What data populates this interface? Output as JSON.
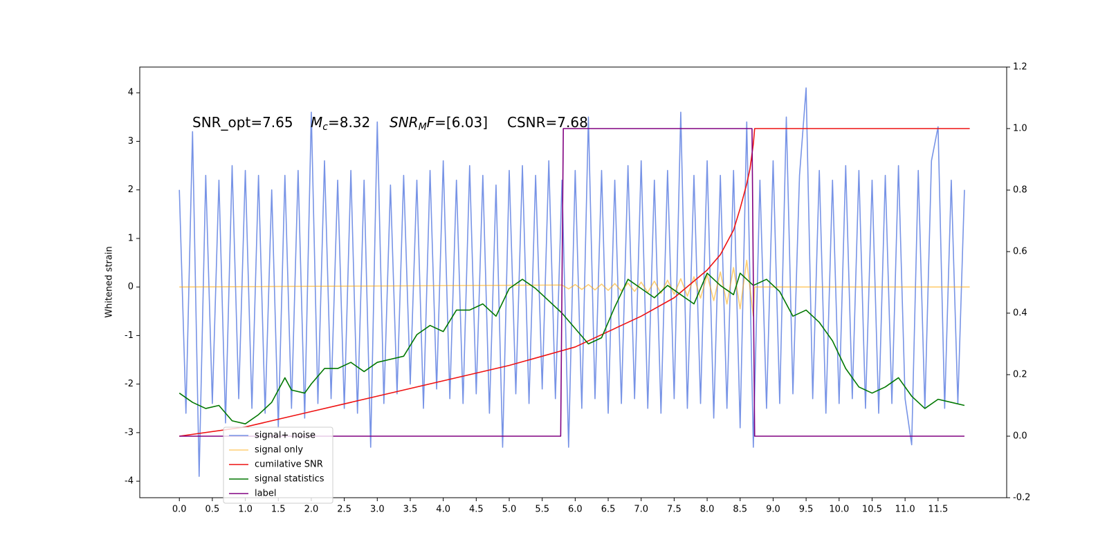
{
  "chart_data": {
    "type": "line",
    "ylabel": "Whitened strain",
    "annotation": [
      [
        {
          "text": "SNR_opt=7.65"
        }
      ],
      [
        {
          "text": "M",
          "style": "italic"
        },
        {
          "text": "c",
          "style": "sub"
        },
        {
          "text": "=8.32"
        }
      ],
      [
        {
          "text": "SNR",
          "style": "italic"
        },
        {
          "text": "M",
          "style": "sub"
        },
        {
          "text": "F",
          "style": "italic"
        },
        {
          "text": "=[6.03]"
        }
      ],
      [
        {
          "text": "CSNR=7.68"
        }
      ]
    ],
    "xlim": [
      -0.6,
      12.54
    ],
    "xticks": [
      {
        "value": 0,
        "label": "0.0"
      },
      0.5,
      {
        "value": 1,
        "label": "1.0"
      },
      1.5,
      {
        "value": 2,
        "label": "2.0"
      },
      2.5,
      {
        "value": 3,
        "label": "3.0"
      },
      3.5,
      {
        "value": 4,
        "label": "4.0"
      },
      4.5,
      {
        "value": 5,
        "label": "5.0"
      },
      5.5,
      {
        "value": 6,
        "label": "6.0"
      },
      6.5,
      {
        "value": 7,
        "label": "7.0"
      },
      7.5,
      {
        "value": 8,
        "label": "8.0"
      },
      8.5,
      {
        "value": 9,
        "label": "9.0"
      },
      9.5,
      {
        "value": 10,
        "label": "10.0"
      },
      10.5,
      {
        "value": 11,
        "label": "11.0"
      },
      11.5
    ],
    "ylim": [
      -4.34,
      4.53
    ],
    "yticks": [
      -4,
      -3,
      -2,
      -1,
      0,
      1,
      2,
      3,
      4
    ],
    "y2lim": [
      -0.2,
      1.2
    ],
    "y2ticks": [
      -0.2,
      {
        "value": 0,
        "label": "0.0"
      },
      0.2,
      0.4,
      0.6,
      0.8,
      {
        "value": 1,
        "label": "1.0"
      },
      1.2
    ],
    "legend": "lower left",
    "series": [
      {
        "name": "signal+ noise",
        "color": "#7793e6",
        "x": [
          0,
          0.1,
          0.2,
          0.3,
          0.4,
          0.5,
          0.6,
          0.7,
          0.8,
          0.9,
          1,
          1.1,
          1.2,
          1.3,
          1.4,
          1.5,
          1.6,
          1.7,
          1.8,
          1.9,
          2,
          2.1,
          2.2,
          2.3,
          2.4,
          2.5,
          2.6,
          2.7,
          2.8,
          2.9,
          3,
          3.1,
          3.2,
          3.3,
          3.4,
          3.5,
          3.6,
          3.7,
          3.8,
          3.9,
          4,
          4.1,
          4.2,
          4.3,
          4.4,
          4.5,
          4.6,
          4.7,
          4.8,
          4.9,
          5,
          5.1,
          5.2,
          5.3,
          5.4,
          5.5,
          5.6,
          5.7,
          5.8,
          5.9,
          6,
          6.1,
          6.2,
          6.3,
          6.4,
          6.5,
          6.6,
          6.7,
          6.8,
          6.9,
          7,
          7.1,
          7.2,
          7.3,
          7.4,
          7.5,
          7.6,
          7.7,
          7.8,
          7.9,
          8,
          8.1,
          8.2,
          8.3,
          8.4,
          8.5,
          8.6,
          8.7,
          8.8,
          8.9,
          9,
          9.1,
          9.2,
          9.3,
          9.4,
          9.5,
          9.6,
          9.7,
          9.8,
          9.9,
          10,
          10.1,
          10.2,
          10.3,
          10.4,
          10.5,
          10.6,
          10.7,
          10.8,
          10.9,
          11,
          11.1,
          11.2,
          11.3,
          11.4,
          11.5,
          11.6,
          11.7,
          11.8,
          11.9
        ],
        "values": [
          2.0,
          -2.6,
          3.2,
          -3.9,
          2.3,
          -2.4,
          2.2,
          -2.8,
          2.5,
          -2.3,
          2.4,
          -2.5,
          2.3,
          -2.6,
          2.0,
          -2.9,
          2.3,
          -2.5,
          2.4,
          -2.7,
          3.6,
          -2.4,
          2.6,
          -2.3,
          2.2,
          -2.5,
          2.4,
          -2.6,
          2.2,
          -3.3,
          3.4,
          -2.4,
          2.1,
          -2.2,
          2.3,
          -2.0,
          2.2,
          -2.5,
          2.4,
          -2.1,
          2.6,
          -2.3,
          2.2,
          -2.4,
          2.5,
          -2.2,
          2.3,
          -2.6,
          2.1,
          -3.3,
          2.4,
          -2.2,
          2.5,
          -2.4,
          2.3,
          -2.1,
          2.6,
          -2.3,
          2.2,
          -3.3,
          2.4,
          -2.5,
          3.5,
          -2.3,
          2.4,
          -2.6,
          2.2,
          -2.4,
          2.5,
          -2.3,
          2.6,
          -2.5,
          2.2,
          -2.6,
          2.4,
          -2.3,
          3.6,
          -2.5,
          2.3,
          -2.4,
          2.6,
          -2.7,
          2.3,
          -2.5,
          2.4,
          -2.9,
          3.4,
          -3.3,
          2.2,
          -2.5,
          2.6,
          -2.4,
          3.5,
          -2.2,
          2.3,
          4.1,
          -2.3,
          2.4,
          -2.6,
          2.2,
          -2.4,
          2.5,
          -2.3,
          2.4,
          -2.5,
          2.2,
          -2.6,
          2.3,
          -2.4,
          2.5,
          -2.3,
          -3.25,
          2.4,
          -2.5,
          2.6,
          3.3,
          -2.5,
          2.2,
          -2.4,
          2.0
        ]
      },
      {
        "name": "signal only",
        "color": "#ffa500",
        "alpha": 0.55,
        "x": [
          0,
          5.8,
          5.9,
          6,
          6.1,
          6.2,
          6.3,
          6.4,
          6.5,
          6.6,
          6.7,
          6.8,
          6.9,
          7,
          7.1,
          7.2,
          7.3,
          7.4,
          7.5,
          7.6,
          7.7,
          7.8,
          7.9,
          8,
          8.1,
          8.2,
          8.3,
          8.4,
          8.5,
          8.6,
          8.7,
          8.72,
          11.98
        ],
        "values": [
          0,
          0.04,
          -0.04,
          0.05,
          -0.05,
          0.05,
          -0.06,
          0.06,
          -0.07,
          0.07,
          -0.08,
          0.08,
          -0.09,
          0.1,
          -0.11,
          0.12,
          -0.13,
          0.14,
          -0.15,
          0.17,
          -0.19,
          0.21,
          -0.23,
          0.25,
          -0.28,
          0.31,
          -0.35,
          0.4,
          -0.45,
          0.55,
          -0.6,
          0,
          0
        ]
      },
      {
        "name": "cumilative SNR",
        "color": "#ee1111",
        "axis": "y2",
        "x": [
          0,
          1,
          2,
          3,
          4,
          5,
          5.5,
          6,
          6.5,
          7,
          7.5,
          8,
          8.2,
          8.4,
          8.5,
          8.6,
          8.65,
          8.7,
          8.72,
          11.98
        ],
        "values": [
          0,
          0.03,
          0.08,
          0.13,
          0.18,
          0.23,
          0.26,
          0.29,
          0.34,
          0.39,
          0.45,
          0.54,
          0.59,
          0.67,
          0.74,
          0.82,
          0.87,
          0.95,
          1.0,
          1.0
        ]
      },
      {
        "name": "signal statistics",
        "color": "#007700",
        "axis": "y2",
        "x": [
          0,
          0.2,
          0.4,
          0.6,
          0.8,
          1,
          1.2,
          1.4,
          1.6,
          1.7,
          1.9,
          2,
          2.2,
          2.4,
          2.6,
          2.8,
          3,
          3.2,
          3.4,
          3.6,
          3.8,
          4,
          4.2,
          4.4,
          4.6,
          4.8,
          5,
          5.2,
          5.4,
          5.6,
          5.8,
          6,
          6.2,
          6.4,
          6.6,
          6.8,
          7,
          7.2,
          7.4,
          7.6,
          7.8,
          8,
          8.2,
          8.4,
          8.5,
          8.7,
          8.9,
          9.1,
          9.3,
          9.5,
          9.7,
          9.9,
          10.1,
          10.3,
          10.5,
          10.7,
          10.9,
          11.1,
          11.3,
          11.5,
          11.7,
          11.9
        ],
        "values": [
          0.14,
          0.11,
          0.09,
          0.1,
          0.05,
          0.04,
          0.07,
          0.11,
          0.19,
          0.15,
          0.14,
          0.17,
          0.22,
          0.22,
          0.24,
          0.21,
          0.24,
          0.25,
          0.26,
          0.33,
          0.36,
          0.34,
          0.41,
          0.41,
          0.43,
          0.39,
          0.48,
          0.51,
          0.48,
          0.44,
          0.4,
          0.35,
          0.3,
          0.32,
          0.42,
          0.51,
          0.48,
          0.45,
          0.49,
          0.46,
          0.43,
          0.53,
          0.49,
          0.46,
          0.53,
          0.49,
          0.51,
          0.47,
          0.39,
          0.41,
          0.37,
          0.31,
          0.22,
          0.16,
          0.14,
          0.16,
          0.19,
          0.13,
          0.09,
          0.12,
          0.11,
          0.1
        ]
      },
      {
        "name": "label",
        "color": "#800080",
        "axis": "y2",
        "x": [
          0,
          5.78,
          5.82,
          8.68,
          8.72,
          11.9
        ],
        "values": [
          0,
          0,
          1,
          1,
          0,
          0
        ]
      }
    ]
  }
}
